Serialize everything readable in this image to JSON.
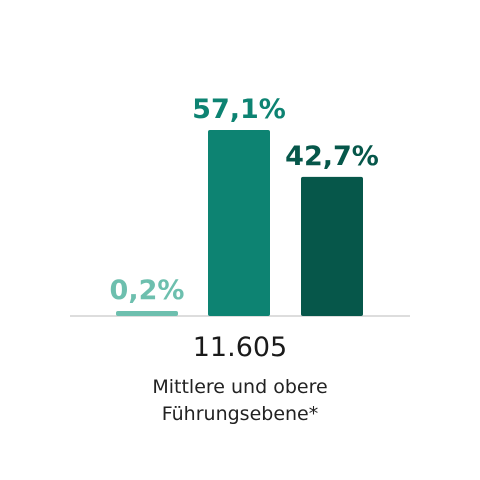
{
  "chart_data": {
    "type": "bar",
    "title": "",
    "xlabel": "",
    "ylabel": "",
    "ylim": [
      0,
      57.1
    ],
    "grid": false,
    "legend": "none",
    "categories": [
      "0,2%",
      "57,1%",
      "42,7%"
    ],
    "values": [
      0.2,
      57.1,
      42.7
    ],
    "value_labels": [
      "0,2%",
      "57,1%",
      "42,7%"
    ],
    "colors": [
      "#6dbfae",
      "#0d8372",
      "#06574a"
    ],
    "group_total": "11.605",
    "group_label_line1": "Mittlere und obere",
    "group_label_line2": "Führungsebene*"
  }
}
